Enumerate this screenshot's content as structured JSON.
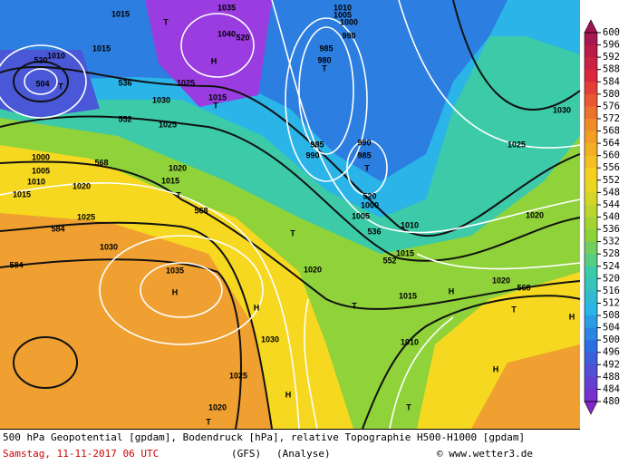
{
  "footer": {
    "line1": "500 hPa Geopotential [gpdam], Bodendruck [hPa], relative Topographie H500-H1000 [gpdam]",
    "date": "Samstag, 11-11-2017 06 UTC",
    "model": "(GFS)",
    "run": "(Analyse)",
    "credit": "© www.wetter3.de"
  },
  "colorbar": {
    "labels": [
      600,
      596,
      592,
      588,
      584,
      580,
      576,
      572,
      568,
      564,
      560,
      556,
      552,
      548,
      544,
      540,
      536,
      532,
      528,
      524,
      520,
      516,
      512,
      508,
      504,
      500,
      496,
      492,
      488,
      484,
      480
    ]
  },
  "map_labels": [
    "1015",
    "T",
    "1035",
    "H",
    "1040",
    "520",
    "1015",
    "1010",
    "520",
    "504",
    "T",
    "536",
    "1030",
    "1025",
    "T",
    "1015",
    "552",
    "1025",
    "1000",
    "1005",
    "1010",
    "1015",
    "568",
    "1020",
    "1015",
    "T",
    "1020",
    "568",
    "1025",
    "584",
    "1030",
    "584",
    "1035",
    "H",
    "H",
    "1030",
    "1025",
    "1020",
    "T",
    "H",
    "T",
    "1020",
    "1010",
    "1005",
    "1000",
    "990",
    "985",
    "980",
    "T",
    "985",
    "990",
    "990",
    "985",
    "T",
    "520",
    "1000",
    "1005",
    "1010",
    "536",
    "1015",
    "552",
    "1015",
    "T",
    "H",
    "1020",
    "568",
    "T",
    "H",
    "1010",
    "H",
    "T",
    "1030",
    "1025",
    "1020"
  ]
}
